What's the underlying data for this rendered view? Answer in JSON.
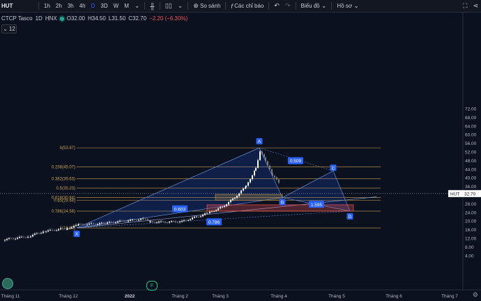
{
  "toolbar": {
    "symbol": "HUT",
    "intervals": [
      "1h",
      "2h",
      "3h",
      "4h",
      "D",
      "3D",
      "W",
      "M"
    ],
    "active_interval": "D",
    "compare_label": "So sánh",
    "indicators_label": "Các chỉ báo",
    "chart_type_label": "Biểu đồ",
    "profile_label": "Hồ sơ"
  },
  "legend": {
    "name": "CTCP Tasco",
    "interval": "1D",
    "exchange": "HNX",
    "open": "O32.00",
    "high": "H34.50",
    "low": "L31.50",
    "close": "C32.70",
    "change": "−2.20 (−6.30%)",
    "collapse_count": "12"
  },
  "price_axis": {
    "ticks": [
      "72.00",
      "68.00",
      "64.00",
      "60.00",
      "56.00",
      "52.00",
      "48.00",
      "44.00",
      "40.00",
      "36.00",
      "32.00",
      "28.00",
      "24.00",
      "20.00",
      "16.00",
      "12.00",
      "8.00",
      "4.00"
    ],
    "current_symbol": "HUT",
    "current_price": "32.70"
  },
  "time_axis": {
    "labels": [
      "Tháng 11",
      "Tháng 12",
      "2022",
      "Tháng 2",
      "Tháng 3",
      "Tháng 4",
      "Tháng 5",
      "Tháng 6",
      "Tháng 7"
    ]
  },
  "fib": {
    "levels": [
      {
        "label": "0(53.87)",
        "price": 53.87
      },
      {
        "label": "0.236(45.07)",
        "price": 45.07
      },
      {
        "label": "0.382(39.63)",
        "price": 39.63
      },
      {
        "label": "0.5(35.23)",
        "price": 35.23
      },
      {
        "label": "0.618(30.84)",
        "price": 30.84
      },
      {
        "label": "0.65(29.64)",
        "price": 29.64
      },
      {
        "label": "0.786(24.58)",
        "price": 24.58
      },
      {
        "label": "1(16.80)",
        "price": 16.8
      }
    ]
  },
  "pattern": {
    "points": [
      {
        "label": "X",
        "price": 16.8
      },
      {
        "label": "A",
        "price": 53.87
      },
      {
        "label": "B",
        "price": 30.84
      },
      {
        "label": "C",
        "price": 43.2
      },
      {
        "label": "D",
        "price": 24.58
      }
    ],
    "ratios": [
      "0.603",
      "0.786",
      "0.509",
      "1.595"
    ]
  },
  "colors": {
    "bg": "#0c1120",
    "fib": "#c8a04a",
    "pattern_fill": "#2962ff",
    "pattern_line": "#5b7fc9",
    "label_bg": "#2962ff",
    "prz": "#ef5350",
    "up": "#ffffff",
    "down": "#787b86"
  },
  "icons": {
    "compare": "plus-circle-icon",
    "indicators": "fx-icon",
    "undo": "undo-icon",
    "redo": "redo-icon",
    "fullscreen": "fullscreen-icon",
    "share": "share-icon",
    "settings": "gear-icon"
  }
}
